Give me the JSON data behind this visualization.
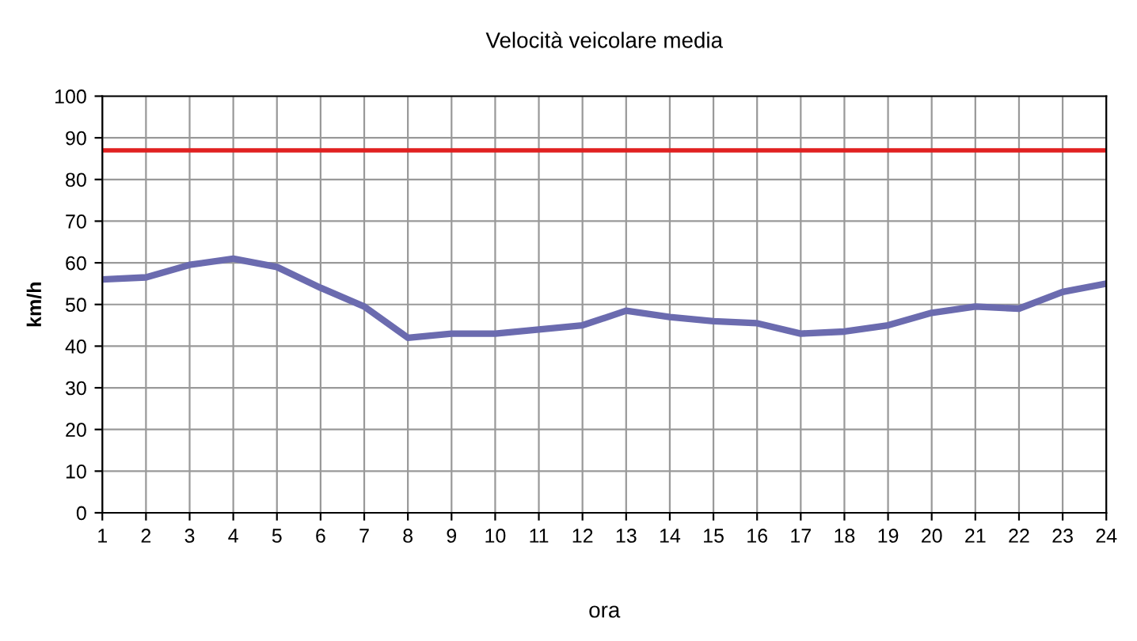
{
  "chart_data": {
    "type": "line",
    "title": "Velocità veicolare media",
    "xlabel": "ora",
    "ylabel": "km/h",
    "x": [
      1,
      2,
      3,
      4,
      5,
      6,
      7,
      8,
      9,
      10,
      11,
      12,
      13,
      14,
      15,
      16,
      17,
      18,
      19,
      20,
      21,
      22,
      23,
      24
    ],
    "series": [
      {
        "color": "#6b6baf",
        "values": [
          56,
          56.5,
          59.5,
          61,
          59,
          54,
          49.5,
          42,
          43,
          43,
          44,
          45,
          48.5,
          47,
          46,
          45.5,
          43,
          43.5,
          45,
          48,
          49.5,
          49,
          53,
          55
        ]
      }
    ],
    "xlim": [
      1,
      24
    ],
    "xticks": [
      1,
      2,
      3,
      4,
      5,
      6,
      7,
      8,
      9,
      10,
      11,
      12,
      13,
      14,
      15,
      16,
      17,
      18,
      19,
      20,
      21,
      22,
      23,
      24
    ],
    "ylim": [
      0,
      100
    ],
    "yticks": [
      0,
      10,
      20,
      30,
      40,
      50,
      60,
      70,
      80,
      90,
      100
    ],
    "ref_lines": [
      {
        "axis": "y",
        "value": 87,
        "color": "#e02020",
        "line_style": "solid"
      }
    ],
    "grid": true,
    "marker": "none",
    "line_style": "solid"
  }
}
